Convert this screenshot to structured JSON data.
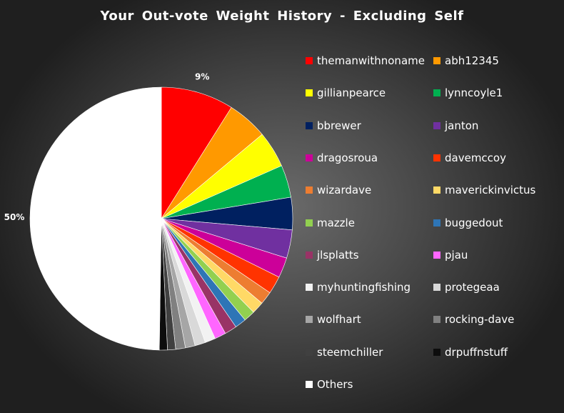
{
  "chart_data": {
    "type": "pie",
    "title": "Your Out-vote  Weight History  - Excluding Self",
    "legend_placement": "right",
    "slices": [
      {
        "name": "themanwithnoname",
        "value": 9,
        "color": "#ff0000"
      },
      {
        "name": "abh12345",
        "value": 5,
        "color": "#ff9900"
      },
      {
        "name": "gillianpearce",
        "value": 4.5,
        "color": "#ffff00"
      },
      {
        "name": "lynncoyle1",
        "value": 4,
        "color": "#00b050"
      },
      {
        "name": "bbrewer",
        "value": 4,
        "color": "#002060"
      },
      {
        "name": "janton",
        "value": 3.5,
        "color": "#7030a0"
      },
      {
        "name": "dragosroua",
        "value": 2.5,
        "color": "#cc0099"
      },
      {
        "name": "davemccoy",
        "value": 2.2,
        "color": "#ff3300"
      },
      {
        "name": "wizardave",
        "value": 1.6,
        "color": "#ed7d31"
      },
      {
        "name": "maverickinvictus",
        "value": 1.5,
        "color": "#ffd966"
      },
      {
        "name": "mazzle",
        "value": 1.4,
        "color": "#92d050"
      },
      {
        "name": "buggedout",
        "value": 1.4,
        "color": "#2e75b6"
      },
      {
        "name": "jlsplatts",
        "value": 1.5,
        "color": "#993366"
      },
      {
        "name": "pjau",
        "value": 1.4,
        "color": "#ff66ff"
      },
      {
        "name": "myhuntingfishing",
        "value": 1.3,
        "color": "#f2f2f2"
      },
      {
        "name": "protegeaa",
        "value": 1.3,
        "color": "#d9d9d9"
      },
      {
        "name": "wolfhart",
        "value": 1.2,
        "color": "#a6a6a6"
      },
      {
        "name": "rocking-dave",
        "value": 1.2,
        "color": "#808080"
      },
      {
        "name": "steemchiller",
        "value": 1.0,
        "color": "#404040"
      },
      {
        "name": "drpuffnstuff",
        "value": 1.0,
        "color": "#0d0d0d"
      },
      {
        "name": "Others",
        "value": 50,
        "color": "#ffffff"
      }
    ],
    "data_labels": [
      {
        "slice": "themanwithnoname",
        "text": "9%"
      },
      {
        "slice": "Others",
        "text": "50%"
      }
    ]
  }
}
